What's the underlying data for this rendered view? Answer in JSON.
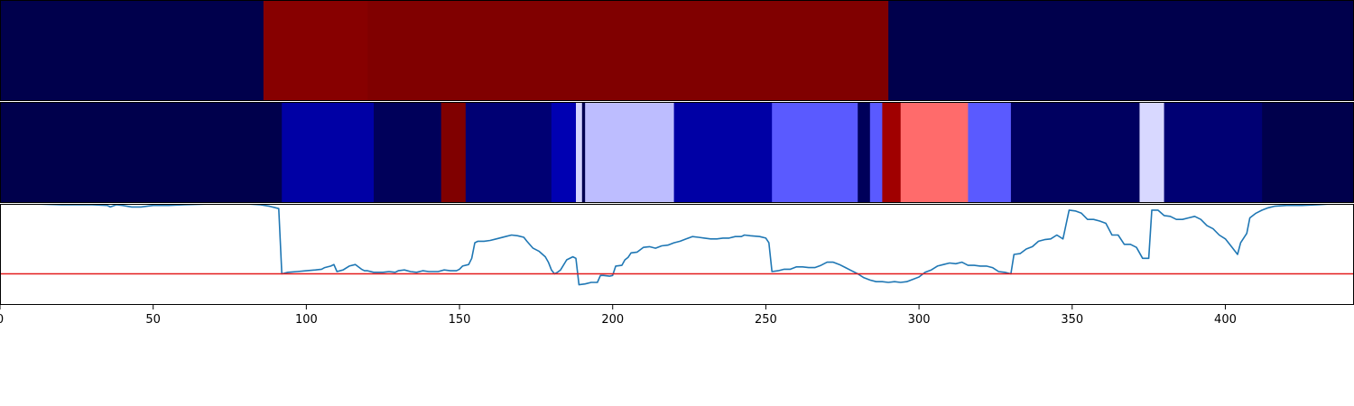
{
  "chart_data": [
    {
      "type": "heatmap",
      "x_range": [
        0,
        442
      ],
      "colors": {
        "dark_navy": "#00004c",
        "maroon": "#800000",
        "dark_red": "#870000"
      },
      "segments": [
        {
          "x0": 0,
          "x1": 86,
          "color": "#00004c"
        },
        {
          "x0": 86,
          "x1": 120,
          "color": "#870000"
        },
        {
          "x0": 120,
          "x1": 290,
          "color": "#800000"
        },
        {
          "x0": 290,
          "x1": 442,
          "color": "#00004c"
        }
      ]
    },
    {
      "type": "heatmap",
      "x_range": [
        0,
        442
      ],
      "segments": [
        {
          "x0": 0,
          "x1": 92,
          "color": "#00004c"
        },
        {
          "x0": 92,
          "x1": 122,
          "color": "#0000a5"
        },
        {
          "x0": 122,
          "x1": 144,
          "color": "#00005a"
        },
        {
          "x0": 144,
          "x1": 152,
          "color": "#800000"
        },
        {
          "x0": 152,
          "x1": 180,
          "color": "#000073"
        },
        {
          "x0": 180,
          "x1": 188,
          "color": "#0000b2"
        },
        {
          "x0": 188,
          "x1": 190,
          "color": "#d5d5ff"
        },
        {
          "x0": 190,
          "x1": 191,
          "color": "#000050"
        },
        {
          "x0": 191,
          "x1": 220,
          "color": "#bdbdff"
        },
        {
          "x0": 220,
          "x1": 252,
          "color": "#0000a5"
        },
        {
          "x0": 252,
          "x1": 280,
          "color": "#5a5aff"
        },
        {
          "x0": 280,
          "x1": 284,
          "color": "#00005a"
        },
        {
          "x0": 284,
          "x1": 288,
          "color": "#5a5aff"
        },
        {
          "x0": 288,
          "x1": 294,
          "color": "#a00000"
        },
        {
          "x0": 294,
          "x1": 316,
          "color": "#ff6b6b"
        },
        {
          "x0": 316,
          "x1": 330,
          "color": "#5a5aff"
        },
        {
          "x0": 330,
          "x1": 372,
          "color": "#000060"
        },
        {
          "x0": 372,
          "x1": 380,
          "color": "#d8d8ff"
        },
        {
          "x0": 380,
          "x1": 412,
          "color": "#000073"
        },
        {
          "x0": 412,
          "x1": 442,
          "color": "#00004c"
        }
      ]
    },
    {
      "type": "line",
      "xlim": [
        0,
        442
      ],
      "ylim": [
        -0.3,
        1.0
      ],
      "xticks": [
        0,
        50,
        100,
        150,
        200,
        250,
        300,
        350,
        400
      ],
      "xtick_labels": [
        "0",
        "50",
        "100",
        "150",
        "200",
        "250",
        "300",
        "350",
        "400"
      ],
      "threshold": 0.1,
      "line_color": "#1f77b4",
      "threshold_color": "#e31a1c",
      "series": [
        {
          "points": [
            [
              0,
              1.01
            ],
            [
              10,
              1.0
            ],
            [
              20,
              0.99
            ],
            [
              30,
              0.99
            ],
            [
              35,
              0.98
            ],
            [
              36,
              0.96
            ],
            [
              38,
              0.99
            ],
            [
              40,
              0.98
            ],
            [
              43,
              0.96
            ],
            [
              46,
              0.96
            ],
            [
              50,
              0.98
            ],
            [
              55,
              0.98
            ],
            [
              60,
              0.99
            ],
            [
              70,
              1.0
            ],
            [
              80,
              1.0
            ],
            [
              85,
              0.99
            ],
            [
              88,
              0.97
            ],
            [
              90,
              0.95
            ],
            [
              91,
              0.94
            ],
            [
              92,
              0.1
            ],
            [
              94,
              0.12
            ],
            [
              97,
              0.13
            ],
            [
              100,
              0.14
            ],
            [
              103,
              0.15
            ],
            [
              105,
              0.16
            ],
            [
              106,
              0.18
            ],
            [
              108,
              0.2
            ],
            [
              109,
              0.22
            ],
            [
              110,
              0.13
            ],
            [
              112,
              0.15
            ],
            [
              114,
              0.2
            ],
            [
              116,
              0.22
            ],
            [
              118,
              0.16
            ],
            [
              119,
              0.14
            ],
            [
              120,
              0.14
            ],
            [
              122,
              0.12
            ],
            [
              125,
              0.12
            ],
            [
              127,
              0.13
            ],
            [
              129,
              0.12
            ],
            [
              130,
              0.14
            ],
            [
              132,
              0.15
            ],
            [
              134,
              0.13
            ],
            [
              136,
              0.12
            ],
            [
              138,
              0.14
            ],
            [
              140,
              0.13
            ],
            [
              143,
              0.13
            ],
            [
              145,
              0.15
            ],
            [
              147,
              0.14
            ],
            [
              149,
              0.14
            ],
            [
              150,
              0.16
            ],
            [
              151,
              0.2
            ],
            [
              153,
              0.22
            ],
            [
              154,
              0.3
            ],
            [
              155,
              0.5
            ],
            [
              156,
              0.52
            ],
            [
              158,
              0.52
            ],
            [
              160,
              0.53
            ],
            [
              162,
              0.55
            ],
            [
              165,
              0.58
            ],
            [
              167,
              0.6
            ],
            [
              169,
              0.59
            ],
            [
              171,
              0.57
            ],
            [
              172,
              0.52
            ],
            [
              174,
              0.43
            ],
            [
              176,
              0.39
            ],
            [
              178,
              0.32
            ],
            [
              179,
              0.25
            ],
            [
              180,
              0.15
            ],
            [
              181,
              0.1
            ],
            [
              182,
              0.12
            ],
            [
              183,
              0.15
            ],
            [
              185,
              0.28
            ],
            [
              187,
              0.32
            ],
            [
              188,
              0.3
            ],
            [
              189,
              -0.04
            ],
            [
              191,
              -0.03
            ],
            [
              193,
              -0.01
            ],
            [
              195,
              -0.01
            ],
            [
              196,
              0.08
            ],
            [
              197,
              0.08
            ],
            [
              199,
              0.07
            ],
            [
              200,
              0.08
            ],
            [
              201,
              0.2
            ],
            [
              203,
              0.21
            ],
            [
              204,
              0.28
            ],
            [
              205,
              0.31
            ],
            [
              206,
              0.37
            ],
            [
              208,
              0.38
            ],
            [
              210,
              0.44
            ],
            [
              212,
              0.45
            ],
            [
              214,
              0.43
            ],
            [
              216,
              0.46
            ],
            [
              218,
              0.47
            ],
            [
              220,
              0.5
            ],
            [
              222,
              0.52
            ],
            [
              224,
              0.55
            ],
            [
              226,
              0.58
            ],
            [
              228,
              0.57
            ],
            [
              230,
              0.56
            ],
            [
              232,
              0.55
            ],
            [
              234,
              0.55
            ],
            [
              236,
              0.56
            ],
            [
              238,
              0.56
            ],
            [
              240,
              0.58
            ],
            [
              242,
              0.58
            ],
            [
              243,
              0.6
            ],
            [
              245,
              0.59
            ],
            [
              248,
              0.58
            ],
            [
              250,
              0.56
            ],
            [
              251,
              0.5
            ],
            [
              252,
              0.13
            ],
            [
              254,
              0.14
            ],
            [
              256,
              0.16
            ],
            [
              258,
              0.16
            ],
            [
              260,
              0.19
            ],
            [
              262,
              0.19
            ],
            [
              264,
              0.18
            ],
            [
              266,
              0.18
            ],
            [
              268,
              0.21
            ],
            [
              270,
              0.25
            ],
            [
              272,
              0.25
            ],
            [
              274,
              0.22
            ],
            [
              276,
              0.18
            ],
            [
              278,
              0.14
            ],
            [
              280,
              0.1
            ],
            [
              282,
              0.05
            ],
            [
              284,
              0.02
            ],
            [
              286,
              0.0
            ],
            [
              288,
              0.0
            ],
            [
              290,
              -0.01
            ],
            [
              292,
              0.0
            ],
            [
              294,
              -0.01
            ],
            [
              296,
              0.0
            ],
            [
              298,
              0.03
            ],
            [
              300,
              0.06
            ],
            [
              302,
              0.12
            ],
            [
              304,
              0.15
            ],
            [
              306,
              0.2
            ],
            [
              308,
              0.22
            ],
            [
              310,
              0.24
            ],
            [
              312,
              0.23
            ],
            [
              314,
              0.25
            ],
            [
              316,
              0.21
            ],
            [
              318,
              0.21
            ],
            [
              320,
              0.2
            ],
            [
              322,
              0.2
            ],
            [
              324,
              0.18
            ],
            [
              326,
              0.13
            ],
            [
              328,
              0.12
            ],
            [
              330,
              0.1
            ],
            [
              331,
              0.35
            ],
            [
              333,
              0.36
            ],
            [
              335,
              0.42
            ],
            [
              337,
              0.45
            ],
            [
              339,
              0.52
            ],
            [
              341,
              0.54
            ],
            [
              343,
              0.55
            ],
            [
              345,
              0.6
            ],
            [
              347,
              0.55
            ],
            [
              349,
              0.92
            ],
            [
              351,
              0.91
            ],
            [
              353,
              0.88
            ],
            [
              355,
              0.8
            ],
            [
              357,
              0.8
            ],
            [
              359,
              0.78
            ],
            [
              361,
              0.75
            ],
            [
              363,
              0.6
            ],
            [
              365,
              0.6
            ],
            [
              367,
              0.48
            ],
            [
              369,
              0.48
            ],
            [
              371,
              0.44
            ],
            [
              373,
              0.3
            ],
            [
              375,
              0.3
            ],
            [
              376,
              0.92
            ],
            [
              378,
              0.92
            ],
            [
              380,
              0.85
            ],
            [
              382,
              0.84
            ],
            [
              384,
              0.8
            ],
            [
              386,
              0.8
            ],
            [
              388,
              0.82
            ],
            [
              390,
              0.84
            ],
            [
              392,
              0.8
            ],
            [
              394,
              0.72
            ],
            [
              396,
              0.68
            ],
            [
              398,
              0.6
            ],
            [
              400,
              0.55
            ],
            [
              402,
              0.45
            ],
            [
              404,
              0.35
            ],
            [
              405,
              0.5
            ],
            [
              407,
              0.62
            ],
            [
              408,
              0.82
            ],
            [
              410,
              0.88
            ],
            [
              412,
              0.92
            ],
            [
              414,
              0.95
            ],
            [
              416,
              0.97
            ],
            [
              420,
              0.98
            ],
            [
              425,
              0.98
            ],
            [
              430,
              0.99
            ],
            [
              435,
              1.0
            ],
            [
              442,
              1.01
            ]
          ]
        }
      ]
    }
  ]
}
